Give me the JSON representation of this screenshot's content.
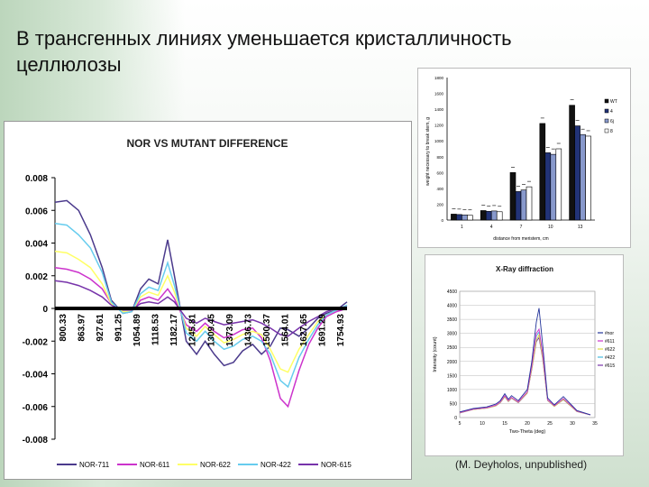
{
  "slide": {
    "title_line1": "В трансгенных линиях уменьшается кристалличность",
    "title_line2": "целлюлозы",
    "credit": "(M. Deyholos, unpublished)"
  },
  "chart_data": [
    {
      "type": "line",
      "title": "NOR VS MUTANT DIFFERENCE",
      "xlabel": "",
      "ylabel": "",
      "ylim": [
        -0.008,
        0.008
      ],
      "yticks": [
        "0.008",
        "0.006",
        "0.004",
        "0.002",
        "0",
        "-0.002",
        "-0.004",
        "-0.006",
        "-0.008"
      ],
      "xtick_labels": [
        "800.33",
        "863.97",
        "927.61",
        "991.25",
        "1054.89",
        "1118.53",
        "1182.17",
        "1245.81",
        "1309.45",
        "1373.09",
        "1436.73",
        "1500.37",
        "1564.01",
        "1627.65",
        "1691.29",
        "1754.93"
      ],
      "x": [
        800,
        840,
        880,
        920,
        960,
        991,
        1030,
        1060,
        1090,
        1118,
        1150,
        1182,
        1205,
        1245,
        1280,
        1309,
        1340,
        1373,
        1405,
        1436,
        1470,
        1500,
        1530,
        1564,
        1590,
        1627,
        1660,
        1691,
        1720,
        1754,
        1790
      ],
      "legend_position": "bottom",
      "series": [
        {
          "name": "NOR-711",
          "color": "#4b3a8c",
          "values": [
            0.0065,
            0.0066,
            0.006,
            0.0045,
            0.0025,
            0.0005,
            -0.0003,
            -0.0002,
            0.0012,
            0.0018,
            0.0015,
            0.0042,
            0.002,
            -0.002,
            -0.0028,
            -0.002,
            -0.0028,
            -0.0035,
            -0.0033,
            -0.0026,
            -0.0022,
            -0.0028,
            -0.0023,
            -0.0012,
            -0.0013,
            -0.0017,
            -0.0012,
            -0.0006,
            -0.0003,
            -0.0001,
            0.0004
          ]
        },
        {
          "name": "NOR-611",
          "color": "#cc33cc",
          "values": [
            0.0025,
            0.0024,
            0.0022,
            0.0018,
            0.0012,
            0.0003,
            -0.0002,
            -0.0002,
            0.0005,
            0.0007,
            0.0005,
            0.0012,
            0.0006,
            -0.001,
            -0.0014,
            -0.0009,
            -0.0014,
            -0.0018,
            -0.0016,
            -0.0013,
            -0.0012,
            -0.0018,
            -0.0032,
            -0.0055,
            -0.006,
            -0.0038,
            -0.0022,
            -0.0012,
            -0.0005,
            -0.0002,
            0.0
          ]
        },
        {
          "name": "NOR-622",
          "color": "#ffff66",
          "values": [
            0.0035,
            0.0034,
            0.003,
            0.0025,
            0.0015,
            0.0003,
            -0.0002,
            -0.0002,
            0.0007,
            0.001,
            0.0008,
            0.002,
            0.001,
            -0.0012,
            -0.0017,
            -0.0011,
            -0.0016,
            -0.0021,
            -0.0019,
            -0.0016,
            -0.0014,
            -0.0016,
            -0.0025,
            -0.0037,
            -0.0039,
            -0.0025,
            -0.0016,
            -0.0008,
            -0.0004,
            -0.0001,
            0.0001
          ]
        },
        {
          "name": "NOR-422",
          "color": "#66ccee",
          "values": [
            0.0052,
            0.0051,
            0.0045,
            0.0037,
            0.0022,
            0.0004,
            -0.0003,
            -0.0002,
            0.0009,
            0.0013,
            0.0011,
            0.0028,
            0.0014,
            -0.0015,
            -0.002,
            -0.0014,
            -0.002,
            -0.0025,
            -0.0023,
            -0.0019,
            -0.0017,
            -0.002,
            -0.0028,
            -0.0044,
            -0.0048,
            -0.003,
            -0.0019,
            -0.001,
            -0.0004,
            -0.0001,
            0.0002
          ]
        },
        {
          "name": "NOR-615",
          "color": "#7733aa",
          "values": [
            0.0017,
            0.0016,
            0.0014,
            0.0011,
            0.0007,
            0.0002,
            -0.0001,
            -0.0001,
            0.0003,
            0.0004,
            0.0003,
            0.0007,
            0.0004,
            -0.0006,
            -0.0009,
            -0.0006,
            -0.0008,
            -0.001,
            -0.0009,
            -0.0008,
            -0.0007,
            -0.0009,
            -0.0012,
            -0.0016,
            -0.0017,
            -0.0012,
            -0.0008,
            -0.0005,
            -0.0002,
            0.0,
            0.0001
          ]
        }
      ]
    },
    {
      "type": "bar",
      "title": "",
      "xlabel": "distance from meristem, cm",
      "ylabel": "weight necessary to break stem, g",
      "ylim": [
        0,
        1800
      ],
      "yticks": [
        "0",
        "200",
        "400",
        "600",
        "800",
        "1000",
        "1200",
        "1400",
        "1600",
        "1800"
      ],
      "categories": [
        "1",
        "4",
        "7",
        "10",
        "13"
      ],
      "legend_position": "right",
      "series": [
        {
          "name": "WT",
          "color": "#111111",
          "values": [
            75,
            120,
            600,
            1220,
            1450
          ]
        },
        {
          "name": "4",
          "color": "#223377",
          "values": [
            70,
            110,
            360,
            850,
            1190
          ]
        },
        {
          "name": "6j",
          "color": "#8899cc",
          "values": [
            65,
            115,
            380,
            830,
            1080
          ]
        },
        {
          "name": "8",
          "color": "#ffffff",
          "values": [
            60,
            105,
            420,
            900,
            1060
          ]
        }
      ]
    },
    {
      "type": "line",
      "title": "X-Ray diffraction",
      "xlabel": "Two-Theta (deg)",
      "ylabel": "Intensity (count)",
      "ylim": [
        0,
        4500
      ],
      "xlim": [
        5,
        35
      ],
      "yticks": [
        "0",
        "500",
        "1000",
        "1500",
        "2000",
        "2500",
        "3000",
        "3500",
        "4000",
        "4500"
      ],
      "xticks": [
        "5",
        "10",
        "15",
        "20",
        "25",
        "30",
        "35"
      ],
      "x": [
        5,
        8,
        11,
        13,
        14,
        15,
        15.8,
        16.5,
        18,
        20,
        21,
        22,
        22.6,
        23.4,
        24.5,
        26,
        28,
        31,
        34
      ],
      "legend_position": "right",
      "series": [
        {
          "name": "#nor",
          "color": "#223399",
          "values": [
            200,
            320,
            380,
            480,
            600,
            850,
            650,
            780,
            600,
            1000,
            2000,
            3400,
            3900,
            2600,
            700,
            450,
            750,
            250,
            100
          ]
        },
        {
          "name": "#611",
          "color": "#cc33cc",
          "values": [
            180,
            300,
            350,
            440,
            560,
            780,
            600,
            720,
            560,
            920,
            1850,
            3000,
            3150,
            2300,
            640,
            420,
            680,
            230,
            100
          ]
        },
        {
          "name": "#622",
          "color": "#dddd44",
          "values": [
            170,
            290,
            340,
            420,
            540,
            750,
            580,
            700,
            540,
            880,
            1750,
            2750,
            2950,
            2150,
            620,
            400,
            650,
            220,
            95
          ]
        },
        {
          "name": "#422",
          "color": "#44bbdd",
          "values": [
            175,
            295,
            345,
            430,
            550,
            760,
            590,
            710,
            550,
            900,
            1800,
            2900,
            3050,
            2200,
            630,
            410,
            660,
            225,
            98
          ]
        },
        {
          "name": "#615",
          "color": "#7733aa",
          "values": [
            165,
            285,
            335,
            415,
            530,
            740,
            570,
            690,
            530,
            870,
            1720,
            2700,
            2850,
            2100,
            610,
            395,
            640,
            215,
            92
          ]
        }
      ]
    }
  ]
}
